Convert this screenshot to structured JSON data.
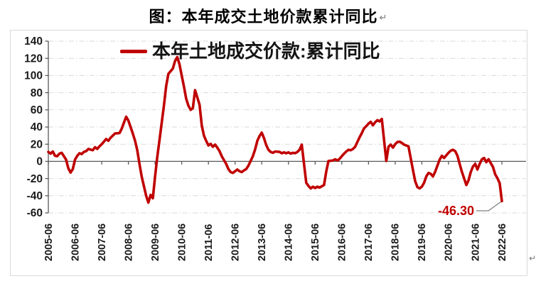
{
  "title": {
    "text": "图：本年成交土地价款累计同比",
    "paragraph_mark": "↵"
  },
  "page": {
    "background": "#ffffff",
    "frame_border_color": "#d9d9d9",
    "trailing_paragraph_mark": "↵"
  },
  "chart_data": {
    "type": "line",
    "title": "图：本年成交土地价款累计同比",
    "legend": {
      "label": "本年土地成交价款:累计同比",
      "position": "top-center",
      "line_color": "#c00000"
    },
    "ylim": [
      -60,
      140
    ],
    "y_ticks": [
      140,
      120,
      100,
      80,
      60,
      40,
      20,
      0,
      -20,
      -40,
      -60
    ],
    "x_tick_labels": [
      "2005-06",
      "2006-06",
      "2007-06",
      "2008-06",
      "2009-06",
      "2010-06",
      "2011-06",
      "2012-06",
      "2013-06",
      "2014-06",
      "2015-06",
      "2016-06",
      "2017-06",
      "2018-06",
      "2019-06",
      "2020-06",
      "2021-06",
      "2022-06"
    ],
    "x_range": [
      "2005-06",
      "2022-06"
    ],
    "grid": "horizontal-dash-dot",
    "grid_color": "#d9d9d9",
    "axis_color": "#595959",
    "label_color": "#1a1a1a",
    "line_color": "#c00000",
    "annotation": {
      "text": "-46.30",
      "value": -46.3,
      "date": "2022-06",
      "color": "#c00000",
      "callout_color": "#7f7f7f"
    },
    "series": [
      {
        "name": "本年土地成交价款:累计同比",
        "color": "#c00000",
        "points": [
          [
            "2005-06",
            11
          ],
          [
            "2005-07",
            9
          ],
          [
            "2005-08",
            11.5
          ],
          [
            "2005-09",
            6.5
          ],
          [
            "2005-10",
            6
          ],
          [
            "2005-11",
            9
          ],
          [
            "2005-12",
            10
          ],
          [
            "2006-02",
            2
          ],
          [
            "2006-03",
            -8
          ],
          [
            "2006-04",
            -13
          ],
          [
            "2006-05",
            -9
          ],
          [
            "2006-06",
            2
          ],
          [
            "2006-07",
            6.5
          ],
          [
            "2006-08",
            9.5
          ],
          [
            "2006-09",
            8.5
          ],
          [
            "2006-10",
            11
          ],
          [
            "2006-11",
            12
          ],
          [
            "2006-12",
            14.5
          ],
          [
            "2007-02",
            13
          ],
          [
            "2007-03",
            16.5
          ],
          [
            "2007-04",
            14.5
          ],
          [
            "2007-05",
            17.5
          ],
          [
            "2007-06",
            20
          ],
          [
            "2007-07",
            23
          ],
          [
            "2007-08",
            26
          ],
          [
            "2007-09",
            24
          ],
          [
            "2007-10",
            27.5
          ],
          [
            "2007-11",
            30
          ],
          [
            "2007-12",
            32.5
          ],
          [
            "2008-02",
            33
          ],
          [
            "2008-03",
            38
          ],
          [
            "2008-04",
            45
          ],
          [
            "2008-05",
            52
          ],
          [
            "2008-06",
            47.5
          ],
          [
            "2008-07",
            40
          ],
          [
            "2008-08",
            32.5
          ],
          [
            "2008-09",
            24
          ],
          [
            "2008-10",
            13
          ],
          [
            "2008-11",
            -3
          ],
          [
            "2008-12",
            -18
          ],
          [
            "2009-02",
            -40
          ],
          [
            "2009-03",
            -48
          ],
          [
            "2009-04",
            -39
          ],
          [
            "2009-05",
            -43
          ],
          [
            "2009-06",
            -18
          ],
          [
            "2009-07",
            5
          ],
          [
            "2009-08",
            25
          ],
          [
            "2009-09",
            45
          ],
          [
            "2009-10",
            65
          ],
          [
            "2009-11",
            88
          ],
          [
            "2009-12",
            102
          ],
          [
            "2010-02",
            108
          ],
          [
            "2010-03",
            117
          ],
          [
            "2010-04",
            121.5
          ],
          [
            "2010-05",
            113
          ],
          [
            "2010-06",
            100
          ],
          [
            "2010-07",
            87
          ],
          [
            "2010-08",
            73
          ],
          [
            "2010-09",
            65
          ],
          [
            "2010-10",
            60
          ],
          [
            "2010-11",
            62
          ],
          [
            "2010-12",
            83
          ],
          [
            "2011-02",
            66
          ],
          [
            "2011-03",
            42
          ],
          [
            "2011-04",
            30
          ],
          [
            "2011-05",
            24
          ],
          [
            "2011-06",
            18.5
          ],
          [
            "2011-07",
            20.5
          ],
          [
            "2011-08",
            17
          ],
          [
            "2011-09",
            19.5
          ],
          [
            "2011-10",
            16
          ],
          [
            "2011-11",
            12
          ],
          [
            "2011-12",
            6
          ],
          [
            "2012-02",
            -3
          ],
          [
            "2012-03",
            -9
          ],
          [
            "2012-04",
            -12.5
          ],
          [
            "2012-05",
            -13.5
          ],
          [
            "2012-06",
            -11.5
          ],
          [
            "2012-07",
            -9.5
          ],
          [
            "2012-08",
            -11.5
          ],
          [
            "2012-09",
            -12.5
          ],
          [
            "2012-10",
            -10.5
          ],
          [
            "2012-11",
            -9
          ],
          [
            "2012-12",
            -5
          ],
          [
            "2013-02",
            6
          ],
          [
            "2013-03",
            14
          ],
          [
            "2013-04",
            24
          ],
          [
            "2013-05",
            29.5
          ],
          [
            "2013-06",
            33.5
          ],
          [
            "2013-07",
            27
          ],
          [
            "2013-08",
            19
          ],
          [
            "2013-09",
            13.5
          ],
          [
            "2013-10",
            11
          ],
          [
            "2013-11",
            10
          ],
          [
            "2013-12",
            11.5
          ],
          [
            "2014-02",
            11
          ],
          [
            "2014-03",
            9.5
          ],
          [
            "2014-04",
            10.5
          ],
          [
            "2014-05",
            9.5
          ],
          [
            "2014-06",
            10.5
          ],
          [
            "2014-07",
            9
          ],
          [
            "2014-08",
            10
          ],
          [
            "2014-09",
            9.5
          ],
          [
            "2014-10",
            11
          ],
          [
            "2014-11",
            13.5
          ],
          [
            "2014-12",
            19.5
          ],
          [
            "2015-02",
            -25
          ],
          [
            "2015-03",
            -28.5
          ],
          [
            "2015-04",
            -31.5
          ],
          [
            "2015-05",
            -29.5
          ],
          [
            "2015-06",
            -31
          ],
          [
            "2015-07",
            -29.5
          ],
          [
            "2015-08",
            -30.5
          ],
          [
            "2015-09",
            -29
          ],
          [
            "2015-10",
            -27.5
          ],
          [
            "2015-11",
            -12
          ],
          [
            "2015-12",
            0.5
          ],
          [
            "2016-02",
            1
          ],
          [
            "2016-03",
            2.5
          ],
          [
            "2016-04",
            1
          ],
          [
            "2016-05",
            3
          ],
          [
            "2016-06",
            6
          ],
          [
            "2016-07",
            9
          ],
          [
            "2016-08",
            11.5
          ],
          [
            "2016-09",
            13.5
          ],
          [
            "2016-10",
            13
          ],
          [
            "2016-11",
            14.5
          ],
          [
            "2016-12",
            17
          ],
          [
            "2017-02",
            28
          ],
          [
            "2017-03",
            33
          ],
          [
            "2017-04",
            38.5
          ],
          [
            "2017-05",
            41
          ],
          [
            "2017-06",
            44
          ],
          [
            "2017-07",
            46
          ],
          [
            "2017-08",
            42
          ],
          [
            "2017-09",
            45.5
          ],
          [
            "2017-10",
            48
          ],
          [
            "2017-11",
            46.5
          ],
          [
            "2017-12",
            49.4
          ],
          [
            "2018-02",
            0.5
          ],
          [
            "2018-03",
            17
          ],
          [
            "2018-04",
            19.5
          ],
          [
            "2018-05",
            16
          ],
          [
            "2018-06",
            20
          ],
          [
            "2018-07",
            22.5
          ],
          [
            "2018-08",
            23
          ],
          [
            "2018-09",
            21.5
          ],
          [
            "2018-10",
            19.5
          ],
          [
            "2018-11",
            18.5
          ],
          [
            "2018-12",
            17.5
          ],
          [
            "2019-02",
            -10
          ],
          [
            "2019-03",
            -23
          ],
          [
            "2019-04",
            -30
          ],
          [
            "2019-05",
            -31.5
          ],
          [
            "2019-06",
            -29.5
          ],
          [
            "2019-07",
            -25
          ],
          [
            "2019-08",
            -17.5
          ],
          [
            "2019-09",
            -13.5
          ],
          [
            "2019-10",
            -14.5
          ],
          [
            "2019-11",
            -17.5
          ],
          [
            "2019-12",
            -12
          ],
          [
            "2020-02",
            2
          ],
          [
            "2020-03",
            6.5
          ],
          [
            "2020-04",
            4
          ],
          [
            "2020-05",
            7
          ],
          [
            "2020-06",
            10
          ],
          [
            "2020-07",
            12.5
          ],
          [
            "2020-08",
            13.5
          ],
          [
            "2020-09",
            12
          ],
          [
            "2020-10",
            6.5
          ],
          [
            "2020-11",
            -3
          ],
          [
            "2020-12",
            -12
          ],
          [
            "2021-02",
            -27.5
          ],
          [
            "2021-03",
            -22
          ],
          [
            "2021-04",
            -12.5
          ],
          [
            "2021-05",
            -6
          ],
          [
            "2021-06",
            -3
          ],
          [
            "2021-07",
            -9.5
          ],
          [
            "2021-08",
            -3
          ],
          [
            "2021-09",
            2.5
          ],
          [
            "2021-10",
            4
          ],
          [
            "2021-11",
            -1
          ],
          [
            "2021-12",
            2.5
          ],
          [
            "2022-02",
            -6.5
          ],
          [
            "2022-03",
            -15
          ],
          [
            "2022-04",
            -19.5
          ],
          [
            "2022-05",
            -25.4
          ],
          [
            "2022-06",
            -46.3
          ]
        ]
      }
    ]
  }
}
